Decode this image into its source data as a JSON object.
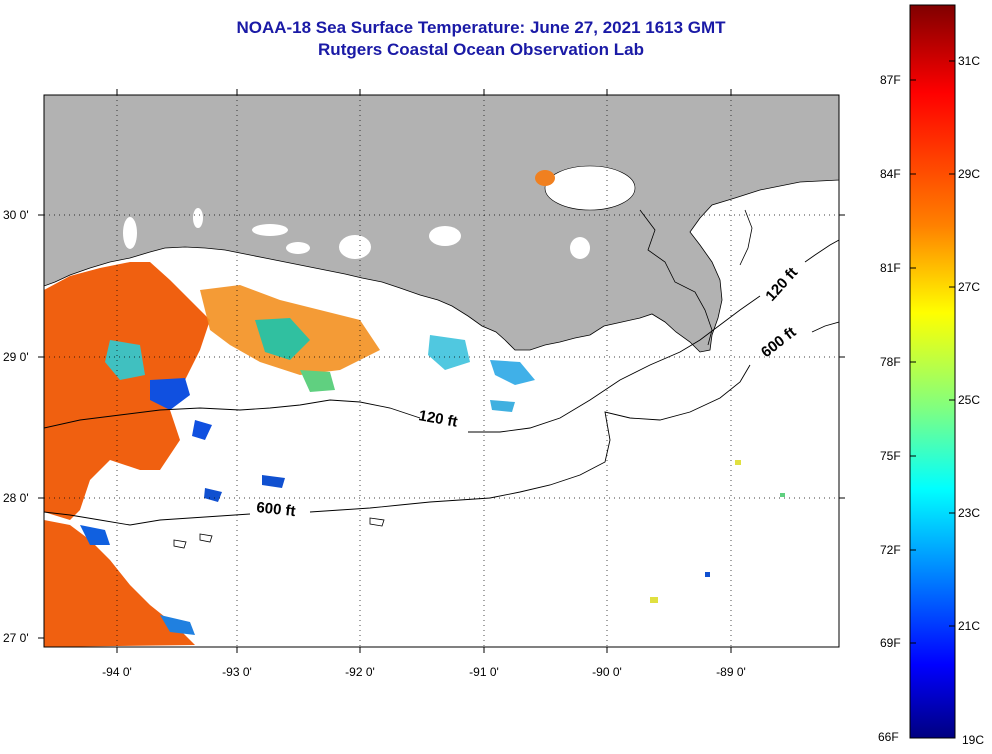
{
  "title": {
    "line1": "NOAA-18 Sea Surface Temperature:  June 27, 2021 1613 GMT",
    "line2": "Rutgers Coastal Ocean Observation Lab"
  },
  "colors": {
    "title": "#1a1aa6",
    "land": "#b2b2b2",
    "ocean_no_data": "#ffffff",
    "warm": "#f06010",
    "cool": "#1060e0"
  },
  "map": {
    "lat_labels": [
      "30 0'",
      "29 0'",
      "28 0'",
      "27 0'"
    ],
    "lon_labels": [
      "-94 0'",
      "-93 0'",
      "-92 0'",
      "-91 0'",
      "-90 0'",
      "-89 0'"
    ],
    "contours": [
      {
        "label": "120 ft"
      },
      {
        "label": "600 ft"
      },
      {
        "label": "120 ft"
      },
      {
        "label": "600 ft"
      }
    ]
  },
  "colorbar": {
    "fahrenheit": [
      "87F",
      "84F",
      "81F",
      "78F",
      "75F",
      "72F",
      "69F",
      "66F"
    ],
    "celsius": [
      "31C",
      "29C",
      "27C",
      "25C",
      "23C",
      "21C",
      "19C"
    ],
    "stops": [
      "#800000",
      "#ff0000",
      "#ff8000",
      "#ffff00",
      "#80ff80",
      "#00ffff",
      "#0080ff",
      "#0000ff",
      "#000080"
    ]
  }
}
